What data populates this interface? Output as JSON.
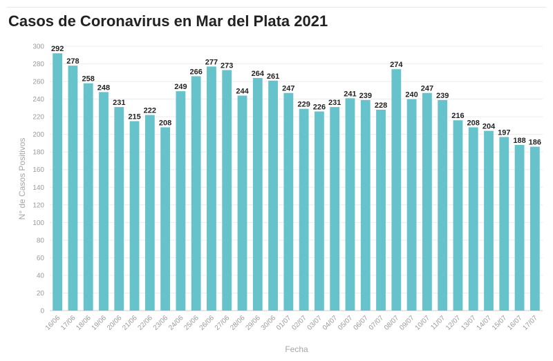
{
  "chart_data": {
    "type": "bar",
    "title": "Casos de Coronavirus en Mar del Plata 2021",
    "xlabel": "Fecha",
    "ylabel": "N° de Casos Positivos",
    "ylim": [
      0,
      300
    ],
    "yticks": [
      0,
      20,
      40,
      60,
      80,
      100,
      120,
      140,
      160,
      180,
      200,
      220,
      240,
      260,
      280,
      300
    ],
    "grid": true,
    "color": "#67c3cb",
    "categories": [
      "16/06",
      "17/06",
      "18/06",
      "19/06",
      "20/06",
      "21/06",
      "22/06",
      "23/06",
      "24/06",
      "25/06",
      "26/06",
      "27/06",
      "28/06",
      "29/06",
      "30/06",
      "01/07",
      "02/07",
      "03/07",
      "04/07",
      "05/07",
      "06/07",
      "07/07",
      "08/07",
      "09/07",
      "10/07",
      "11/07",
      "12/07",
      "13/07",
      "14/07",
      "15/07",
      "16/07",
      "17/07"
    ],
    "values": [
      292,
      278,
      258,
      248,
      231,
      215,
      222,
      208,
      249,
      266,
      277,
      273,
      244,
      264,
      261,
      247,
      229,
      226,
      231,
      241,
      239,
      228,
      274,
      240,
      247,
      239,
      216,
      208,
      204,
      197,
      188,
      186
    ]
  }
}
